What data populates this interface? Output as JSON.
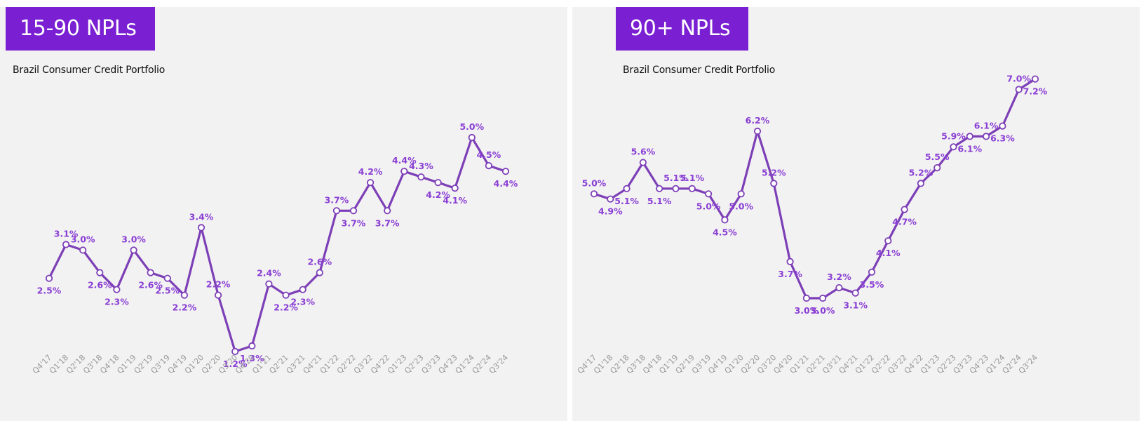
{
  "colors": {
    "accent": "#7a1fd2",
    "line": "#7d3fb7",
    "label": "#8a3fd4",
    "panel_bg": "#f2f2f2"
  },
  "chart_data": [
    {
      "type": "line",
      "title": "15-90 NPLs",
      "subtitle": "Brazil Consumer Credit Portfolio",
      "categories": [
        "Q4'17",
        "Q1'18",
        "Q2'18",
        "Q3'18",
        "Q4'18",
        "Q1'19",
        "Q2'19",
        "Q3'19",
        "Q4'19",
        "Q1'20",
        "Q2'20",
        "Q3'20",
        "Q4'20",
        "Q1'21",
        "Q2'21",
        "Q3'21",
        "Q4'21",
        "Q1'22",
        "Q2'22",
        "Q3'22",
        "Q4'22",
        "Q1'23",
        "Q2'23",
        "Q3'23",
        "Q4'23",
        "Q1'24",
        "Q2'24",
        "Q3'24"
      ],
      "values": [
        2.5,
        3.1,
        3.0,
        2.6,
        2.3,
        3.0,
        2.6,
        2.5,
        2.2,
        3.4,
        2.2,
        1.2,
        1.3,
        2.4,
        2.2,
        2.3,
        2.6,
        3.7,
        3.7,
        4.2,
        3.7,
        4.4,
        4.3,
        4.2,
        4.1,
        5.0,
        4.5,
        4.4
      ],
      "labels": [
        "2.5%",
        "3.1%",
        "3.0%",
        "2.6%",
        "2.3%",
        "3.0%",
        "2.6%",
        "2.5%",
        "2.2%",
        "3.4%",
        "2.2%",
        "1.2%",
        "1.3%",
        "2.4%",
        "2.2%",
        "2.3%",
        "2.6%",
        "3.7%",
        "3.7%",
        "4.2%",
        "3.7%",
        "4.4%",
        "4.3%",
        "4.2%",
        "4.1%",
        "5.0%",
        "4.5%",
        "4.4%"
      ],
      "ylim": [
        0.5,
        6.0
      ],
      "grid": false,
      "legend": "none"
    },
    {
      "type": "line",
      "title": "90+ NPLs",
      "subtitle": "Brazil Consumer Credit Portfolio",
      "categories": [
        "Q4'17",
        "Q1'18",
        "Q2'18",
        "Q3'18",
        "Q4'18",
        "Q1'19",
        "Q2'19",
        "Q3'19",
        "Q4'19",
        "Q1'20",
        "Q2'20",
        "Q3'20",
        "Q4'20",
        "Q1'21",
        "Q2'21",
        "Q3'21",
        "Q4'21",
        "Q1'22",
        "Q2'22",
        "Q3'22",
        "Q4'22",
        "Q1'23",
        "Q2'23",
        "Q3'23",
        "Q4'23",
        "Q1'24",
        "Q2'24",
        "Q3'24"
      ],
      "values": [
        5.0,
        4.9,
        5.1,
        5.6,
        5.1,
        5.1,
        5.1,
        5.0,
        4.5,
        5.0,
        6.2,
        5.2,
        3.7,
        3.0,
        3.0,
        3.2,
        3.1,
        3.5,
        4.1,
        4.7,
        5.2,
        5.5,
        5.9,
        6.1,
        6.1,
        6.3,
        7.0,
        7.2
      ],
      "labels": [
        "5.0%",
        "4.9%",
        "5.1%",
        "5.6%",
        "5.1%",
        "5.1%",
        "5.1%",
        "5.0%",
        "4.5%",
        "5.0%",
        "6.2%",
        "5.2%",
        "3.7%",
        "3.0%",
        "3.0%",
        "3.2%",
        "3.1%",
        "3.5%",
        "4.1%",
        "4.7%",
        "5.2%",
        "5.5%",
        "5.9%",
        "6.1%",
        "6.1%",
        "6.3%",
        "7.0%",
        "7.2%"
      ],
      "ylim": [
        1.5,
        8.0
      ],
      "grid": false,
      "legend": "none"
    }
  ]
}
